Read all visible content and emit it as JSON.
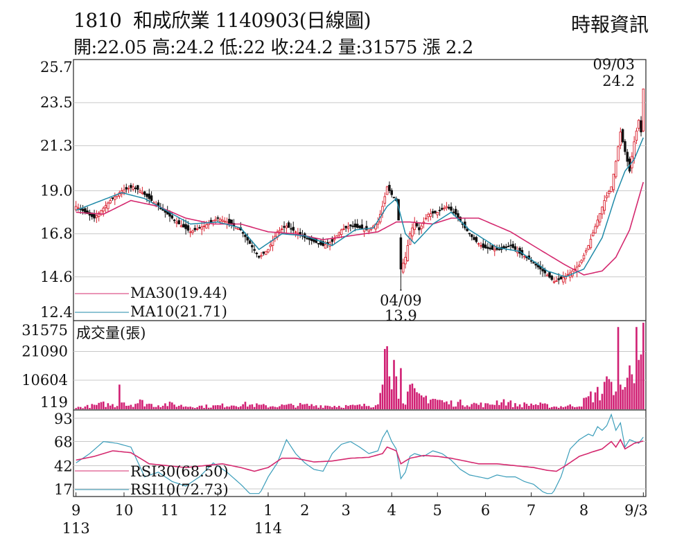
{
  "header": {
    "stock_code": "1810",
    "stock_name": "和成欣業",
    "date_code": "1140903",
    "chart_kind": "(日線圖)",
    "source": "時報資訊",
    "ohlc_text": "開:22.05 高:24.2 低:22 收:24.2 量:31575 漲 2.2"
  },
  "colors": {
    "up": "#d81e2c",
    "down": "#111111",
    "ma30": "#d4286e",
    "ma10": "#1e8aa8",
    "rsi30": "#d4286e",
    "rsi10": "#3a9dba",
    "volume": "#d01f73",
    "grid": "#c8c8c8"
  },
  "chart_data": [
    {
      "type": "candlestick",
      "panel": "price",
      "y_ticks": [
        12.4,
        14.6,
        16.8,
        19.0,
        21.3,
        23.5,
        25.7
      ],
      "ylim": [
        12.4,
        25.7
      ],
      "grid": true,
      "last_bar": {
        "open": 22.05,
        "high": 24.2,
        "low": 22,
        "close": 24.2,
        "volume": 31575,
        "change": 2.2
      },
      "annotations": [
        {
          "label": "09/03",
          "value": "24.2",
          "date_index": 248
        },
        {
          "label": "04/09",
          "value": "13.9",
          "date_index": 142
        }
      ],
      "series": [
        {
          "name": "MA30(19.44)",
          "last": 19.44
        },
        {
          "name": "MA10(21.71)",
          "last": 21.71
        }
      ],
      "key_closes": [
        [
          0,
          18.2
        ],
        [
          8,
          17.6
        ],
        [
          15,
          18.5
        ],
        [
          20,
          19.0
        ],
        [
          25,
          19.2
        ],
        [
          28,
          19.0
        ],
        [
          34,
          18.4
        ],
        [
          40,
          17.8
        ],
        [
          45,
          17.3
        ],
        [
          50,
          16.9
        ],
        [
          56,
          17.2
        ],
        [
          62,
          17.6
        ],
        [
          68,
          17.3
        ],
        [
          72,
          17.0
        ],
        [
          76,
          16.3
        ],
        [
          80,
          15.6
        ],
        [
          84,
          16.0
        ],
        [
          88,
          16.9
        ],
        [
          92,
          17.2
        ],
        [
          96,
          16.9
        ],
        [
          100,
          16.6
        ],
        [
          104,
          16.4
        ],
        [
          108,
          16.2
        ],
        [
          112,
          16.4
        ],
        [
          116,
          17.0
        ],
        [
          120,
          17.2
        ],
        [
          124,
          17.1
        ],
        [
          128,
          17.0
        ],
        [
          132,
          17.4
        ],
        [
          134,
          18.2
        ],
        [
          136,
          19.2
        ],
        [
          138,
          18.8
        ],
        [
          140,
          18.5
        ],
        [
          141,
          17.5
        ],
        [
          142,
          15.0
        ],
        [
          144,
          15.6
        ],
        [
          146,
          16.8
        ],
        [
          148,
          17.4
        ],
        [
          150,
          17.0
        ],
        [
          154,
          17.8
        ],
        [
          158,
          17.9
        ],
        [
          162,
          18.2
        ],
        [
          166,
          17.8
        ],
        [
          170,
          17.1
        ],
        [
          174,
          16.5
        ],
        [
          178,
          16.1
        ],
        [
          182,
          16.0
        ],
        [
          186,
          16.0
        ],
        [
          190,
          16.2
        ],
        [
          194,
          15.8
        ],
        [
          198,
          15.5
        ],
        [
          202,
          15.1
        ],
        [
          206,
          14.7
        ],
        [
          209,
          14.35
        ],
        [
          212,
          14.5
        ],
        [
          216,
          14.8
        ],
        [
          220,
          15.2
        ],
        [
          224,
          16.2
        ],
        [
          228,
          17.5
        ],
        [
          231,
          18.5
        ],
        [
          234,
          19.2
        ],
        [
          236,
          20.5
        ],
        [
          238,
          22.0
        ],
        [
          240,
          21.0
        ],
        [
          242,
          20.0
        ],
        [
          244,
          21.5
        ],
        [
          246,
          22.6
        ],
        [
          247,
          22.0
        ],
        [
          248,
          24.2
        ]
      ],
      "key_ma10": [
        [
          0,
          18.0
        ],
        [
          20,
          18.9
        ],
        [
          30,
          18.6
        ],
        [
          50,
          17.3
        ],
        [
          62,
          17.4
        ],
        [
          72,
          17.1
        ],
        [
          80,
          16.0
        ],
        [
          90,
          16.8
        ],
        [
          100,
          16.7
        ],
        [
          112,
          16.2
        ],
        [
          122,
          17.0
        ],
        [
          130,
          17.1
        ],
        [
          136,
          18.2
        ],
        [
          140,
          18.6
        ],
        [
          144,
          16.8
        ],
        [
          148,
          16.3
        ],
        [
          156,
          17.3
        ],
        [
          164,
          17.9
        ],
        [
          172,
          17.0
        ],
        [
          184,
          16.1
        ],
        [
          194,
          15.9
        ],
        [
          206,
          14.9
        ],
        [
          214,
          14.6
        ],
        [
          222,
          15.0
        ],
        [
          230,
          16.6
        ],
        [
          236,
          18.8
        ],
        [
          240,
          20.0
        ],
        [
          244,
          20.6
        ],
        [
          248,
          21.71
        ]
      ],
      "key_ma30": [
        [
          0,
          17.9
        ],
        [
          12,
          17.8
        ],
        [
          24,
          18.5
        ],
        [
          36,
          18.2
        ],
        [
          48,
          17.6
        ],
        [
          60,
          17.3
        ],
        [
          72,
          17.3
        ],
        [
          84,
          16.9
        ],
        [
          96,
          16.8
        ],
        [
          108,
          16.5
        ],
        [
          120,
          16.7
        ],
        [
          132,
          16.9
        ],
        [
          140,
          17.4
        ],
        [
          146,
          17.4
        ],
        [
          156,
          17.3
        ],
        [
          164,
          17.6
        ],
        [
          176,
          17.6
        ],
        [
          190,
          16.9
        ],
        [
          204,
          15.9
        ],
        [
          214,
          15.2
        ],
        [
          222,
          14.7
        ],
        [
          230,
          14.9
        ],
        [
          236,
          15.6
        ],
        [
          242,
          17.0
        ],
        [
          248,
          19.44
        ]
      ]
    },
    {
      "type": "bar",
      "panel": "volume",
      "title": "成交量(張)",
      "y_ticks": [
        119,
        10604,
        21090,
        31575
      ],
      "ylim": [
        0,
        31575
      ],
      "key_volumes": [
        [
          0,
          800
        ],
        [
          6,
          1500
        ],
        [
          12,
          2500
        ],
        [
          18,
          1800
        ],
        [
          19,
          9000
        ],
        [
          22,
          2000
        ],
        [
          28,
          3500
        ],
        [
          34,
          2000
        ],
        [
          40,
          2500
        ],
        [
          48,
          1500
        ],
        [
          60,
          1500
        ],
        [
          72,
          2500
        ],
        [
          84,
          1500
        ],
        [
          96,
          2000
        ],
        [
          108,
          1800
        ],
        [
          120,
          1500
        ],
        [
          130,
          2000
        ],
        [
          134,
          9000
        ],
        [
          135,
          22000
        ],
        [
          136,
          23000
        ],
        [
          137,
          12000
        ],
        [
          138,
          8000
        ],
        [
          139,
          18000
        ],
        [
          140,
          12000
        ],
        [
          141,
          8000
        ],
        [
          142,
          15000
        ],
        [
          143,
          7000
        ],
        [
          144,
          5000
        ],
        [
          146,
          9000
        ],
        [
          148,
          7000
        ],
        [
          150,
          5000
        ],
        [
          154,
          6000
        ],
        [
          158,
          4500
        ],
        [
          162,
          3000
        ],
        [
          170,
          3000
        ],
        [
          180,
          2000
        ],
        [
          186,
          4500
        ],
        [
          192,
          2000
        ],
        [
          200,
          2500
        ],
        [
          210,
          1200
        ],
        [
          220,
          2000
        ],
        [
          226,
          7000
        ],
        [
          230,
          8000
        ],
        [
          232,
          12000
        ],
        [
          234,
          10000
        ],
        [
          236,
          6500
        ],
        [
          237,
          30000
        ],
        [
          238,
          9000
        ],
        [
          240,
          7000
        ],
        [
          242,
          16000
        ],
        [
          244,
          9500
        ],
        [
          245,
          30000
        ],
        [
          246,
          18000
        ],
        [
          247,
          20000
        ],
        [
          248,
          31575
        ]
      ]
    },
    {
      "type": "line",
      "panel": "rsi",
      "y_ticks": [
        17,
        42,
        68,
        93
      ],
      "ylim": [
        17,
        93
      ],
      "series": [
        {
          "name": "RSI30(68.50)",
          "last": 68.5
        },
        {
          "name": "RSI10(72.73)",
          "last": 72.73
        }
      ],
      "key_rsi10": [
        [
          0,
          45
        ],
        [
          6,
          55
        ],
        [
          12,
          68
        ],
        [
          18,
          66
        ],
        [
          24,
          62
        ],
        [
          30,
          30
        ],
        [
          36,
          35
        ],
        [
          42,
          25
        ],
        [
          48,
          20
        ],
        [
          54,
          30
        ],
        [
          60,
          45
        ],
        [
          66,
          35
        ],
        [
          72,
          22
        ],
        [
          76,
          12
        ],
        [
          80,
          10
        ],
        [
          84,
          30
        ],
        [
          88,
          45
        ],
        [
          92,
          70
        ],
        [
          96,
          55
        ],
        [
          100,
          45
        ],
        [
          104,
          38
        ],
        [
          108,
          36
        ],
        [
          112,
          55
        ],
        [
          116,
          65
        ],
        [
          120,
          68
        ],
        [
          124,
          62
        ],
        [
          128,
          55
        ],
        [
          132,
          58
        ],
        [
          134,
          72
        ],
        [
          136,
          80
        ],
        [
          138,
          68
        ],
        [
          140,
          60
        ],
        [
          142,
          28
        ],
        [
          144,
          35
        ],
        [
          146,
          52
        ],
        [
          148,
          55
        ],
        [
          152,
          52
        ],
        [
          156,
          58
        ],
        [
          160,
          55
        ],
        [
          164,
          48
        ],
        [
          168,
          38
        ],
        [
          172,
          32
        ],
        [
          176,
          30
        ],
        [
          180,
          28
        ],
        [
          184,
          32
        ],
        [
          188,
          30
        ],
        [
          192,
          30
        ],
        [
          196,
          25
        ],
        [
          200,
          22
        ],
        [
          204,
          14
        ],
        [
          208,
          10
        ],
        [
          212,
          30
        ],
        [
          216,
          60
        ],
        [
          220,
          70
        ],
        [
          224,
          76
        ],
        [
          226,
          74
        ],
        [
          228,
          84
        ],
        [
          230,
          80
        ],
        [
          232,
          85
        ],
        [
          234,
          97
        ],
        [
          236,
          80
        ],
        [
          238,
          88
        ],
        [
          240,
          62
        ],
        [
          242,
          70
        ],
        [
          244,
          68
        ],
        [
          246,
          66
        ],
        [
          248,
          72.73
        ]
      ],
      "key_rsi30": [
        [
          0,
          48
        ],
        [
          8,
          52
        ],
        [
          16,
          58
        ],
        [
          24,
          56
        ],
        [
          32,
          44
        ],
        [
          40,
          42
        ],
        [
          48,
          40
        ],
        [
          56,
          42
        ],
        [
          64,
          44
        ],
        [
          72,
          40
        ],
        [
          78,
          36
        ],
        [
          84,
          40
        ],
        [
          90,
          50
        ],
        [
          96,
          50
        ],
        [
          104,
          46
        ],
        [
          112,
          47
        ],
        [
          120,
          50
        ],
        [
          128,
          51
        ],
        [
          134,
          55
        ],
        [
          136,
          62
        ],
        [
          140,
          58
        ],
        [
          142,
          44
        ],
        [
          146,
          50
        ],
        [
          152,
          53
        ],
        [
          158,
          52
        ],
        [
          164,
          50
        ],
        [
          170,
          47
        ],
        [
          176,
          44
        ],
        [
          184,
          44
        ],
        [
          192,
          42
        ],
        [
          200,
          40
        ],
        [
          206,
          37
        ],
        [
          210,
          36
        ],
        [
          214,
          42
        ],
        [
          220,
          52
        ],
        [
          226,
          57
        ],
        [
          230,
          60
        ],
        [
          234,
          68
        ],
        [
          236,
          62
        ],
        [
          238,
          70
        ],
        [
          240,
          60
        ],
        [
          244,
          66
        ],
        [
          248,
          68.5
        ]
      ]
    }
  ],
  "x_axis": {
    "labels": [
      {
        "text": "9",
        "idx": 0
      },
      {
        "text": "10",
        "idx": 21
      },
      {
        "text": "11",
        "idx": 41
      },
      {
        "text": "12",
        "idx": 62
      },
      {
        "text": "1",
        "idx": 84
      },
      {
        "text": "2",
        "idx": 100
      },
      {
        "text": "3",
        "idx": 118
      },
      {
        "text": "4",
        "idx": 138
      },
      {
        "text": "5",
        "idx": 158
      },
      {
        "text": "6",
        "idx": 179
      },
      {
        "text": "7",
        "idx": 199
      },
      {
        "text": "8",
        "idx": 222
      },
      {
        "text": "9/3",
        "idx": 248
      }
    ],
    "year_labels": [
      {
        "text": "113",
        "idx": 0
      },
      {
        "text": "114",
        "idx": 84
      }
    ]
  }
}
